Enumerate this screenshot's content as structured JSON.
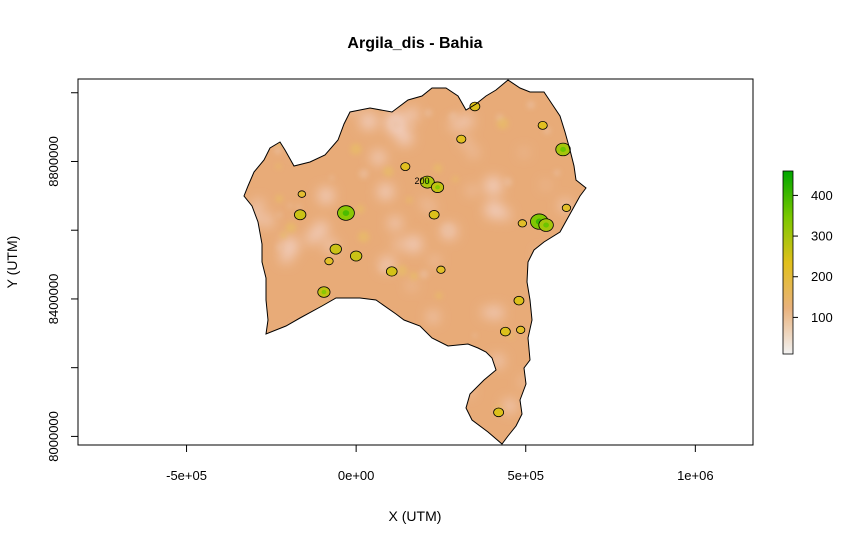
{
  "chart_data": {
    "type": "heatmap",
    "title": "Argila_dis - Bahia",
    "xlabel": "X (UTM)",
    "ylabel": "Y (UTM)",
    "xlim": [
      -820000,
      1170000
    ],
    "ylim": [
      7975000,
      9040000
    ],
    "x_ticks": [
      {
        "value": -500000,
        "label": "-5e+05"
      },
      {
        "value": 0,
        "label": "0e+00"
      },
      {
        "value": 500000,
        "label": "5e+05"
      },
      {
        "value": 1000000,
        "label": "1e+06"
      }
    ],
    "y_ticks": [
      {
        "value": 8000000,
        "label": "8000000"
      },
      {
        "value": 8400000,
        "label": "8400000"
      },
      {
        "value": 8800000,
        "label": "8800000"
      }
    ],
    "y_minor_ticks": [
      8200000,
      8600000,
      9000000
    ],
    "colorbar": {
      "range": [
        10,
        460
      ],
      "ticks": [
        {
          "value": 100,
          "label": "100"
        },
        {
          "value": 200,
          "label": "200"
        },
        {
          "value": 300,
          "label": "300"
        },
        {
          "value": 400,
          "label": "400"
        }
      ],
      "colors": [
        "#f2f2f2",
        "#e9b27d",
        "#e1c01c",
        "#7ac800",
        "#00a600"
      ]
    },
    "contour_label": "200",
    "hotspots": [
      {
        "x": 350000,
        "y": 8960000,
        "v": 240
      },
      {
        "x": 310000,
        "y": 8865000,
        "v": 230
      },
      {
        "x": 550000,
        "y": 8905000,
        "v": 230
      },
      {
        "x": 610000,
        "y": 8835000,
        "v": 300
      },
      {
        "x": 145000,
        "y": 8785000,
        "v": 230
      },
      {
        "x": 210000,
        "y": 8740000,
        "v": 290
      },
      {
        "x": 240000,
        "y": 8725000,
        "v": 270
      },
      {
        "x": 230000,
        "y": 8645000,
        "v": 240
      },
      {
        "x": -160000,
        "y": 8705000,
        "v": 210
      },
      {
        "x": -165000,
        "y": 8645000,
        "v": 260
      },
      {
        "x": -30000,
        "y": 8650000,
        "v": 330
      },
      {
        "x": -60000,
        "y": 8545000,
        "v": 260
      },
      {
        "x": 0,
        "y": 8525000,
        "v": 260
      },
      {
        "x": -80000,
        "y": 8510000,
        "v": 220
      },
      {
        "x": 105000,
        "y": 8480000,
        "v": 250
      },
      {
        "x": 250000,
        "y": 8485000,
        "v": 220
      },
      {
        "x": 540000,
        "y": 8625000,
        "v": 340
      },
      {
        "x": 560000,
        "y": 8615000,
        "v": 300
      },
      {
        "x": 490000,
        "y": 8620000,
        "v": 220
      },
      {
        "x": 620000,
        "y": 8665000,
        "v": 220
      },
      {
        "x": -95000,
        "y": 8420000,
        "v": 270
      },
      {
        "x": 480000,
        "y": 8395000,
        "v": 240
      },
      {
        "x": 485000,
        "y": 8310000,
        "v": 220
      },
      {
        "x": 440000,
        "y": 8305000,
        "v": 240
      },
      {
        "x": 420000,
        "y": 8070000,
        "v": 240
      }
    ]
  }
}
